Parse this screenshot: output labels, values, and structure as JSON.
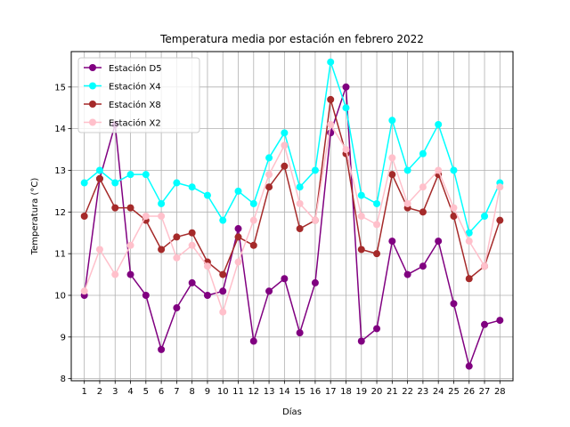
{
  "chart_data": {
    "type": "line",
    "title": "Temperatura media por estación en febrero 2022",
    "xlabel": "Días",
    "ylabel": "Temperatura (°C)",
    "x": [
      1,
      2,
      3,
      4,
      5,
      6,
      7,
      8,
      9,
      10,
      11,
      12,
      13,
      14,
      15,
      16,
      17,
      18,
      19,
      20,
      21,
      22,
      23,
      24,
      25,
      26,
      27,
      28
    ],
    "xlim": [
      0.15,
      28.85
    ],
    "ylim": [
      7.95,
      15.85
    ],
    "yticks": [
      8,
      9,
      10,
      11,
      12,
      13,
      14,
      15
    ],
    "grid": true,
    "legend_position": "top-left",
    "series": [
      {
        "name": "Estación D5",
        "color": "#800080",
        "values": [
          10.0,
          12.8,
          14.1,
          10.5,
          10.0,
          8.7,
          9.7,
          10.3,
          10.0,
          10.1,
          11.6,
          8.9,
          10.1,
          10.4,
          9.1,
          10.3,
          13.9,
          15.0,
          8.9,
          9.2,
          11.3,
          10.5,
          10.7,
          11.3,
          9.8,
          8.3,
          9.3,
          9.4
        ]
      },
      {
        "name": "Estación X4",
        "color": "#00ffff",
        "values": [
          12.7,
          13.0,
          12.7,
          12.9,
          12.9,
          12.2,
          12.7,
          12.6,
          12.4,
          11.8,
          12.5,
          12.2,
          13.3,
          13.9,
          12.6,
          13.0,
          15.6,
          14.5,
          12.4,
          12.2,
          14.2,
          13.0,
          13.4,
          14.1,
          13.0,
          11.5,
          11.9,
          12.7
        ]
      },
      {
        "name": "Estación X8",
        "color": "#a52a2a",
        "values": [
          11.9,
          12.8,
          12.1,
          12.1,
          11.8,
          11.1,
          11.4,
          11.5,
          10.8,
          10.5,
          11.4,
          11.2,
          12.6,
          13.1,
          11.6,
          11.8,
          14.7,
          13.4,
          11.1,
          11.0,
          12.9,
          12.1,
          12.0,
          12.9,
          11.9,
          10.4,
          10.7,
          11.8
        ]
      },
      {
        "name": "Estación X2",
        "color": "#ffc0cb",
        "values": [
          10.1,
          11.1,
          10.5,
          11.2,
          11.9,
          11.9,
          10.9,
          11.2,
          10.7,
          9.6,
          10.8,
          11.8,
          12.9,
          13.6,
          12.2,
          11.8,
          14.1,
          13.5,
          11.9,
          11.7,
          13.3,
          12.2,
          12.6,
          13.0,
          12.1,
          11.3,
          10.7,
          12.6
        ]
      }
    ]
  }
}
